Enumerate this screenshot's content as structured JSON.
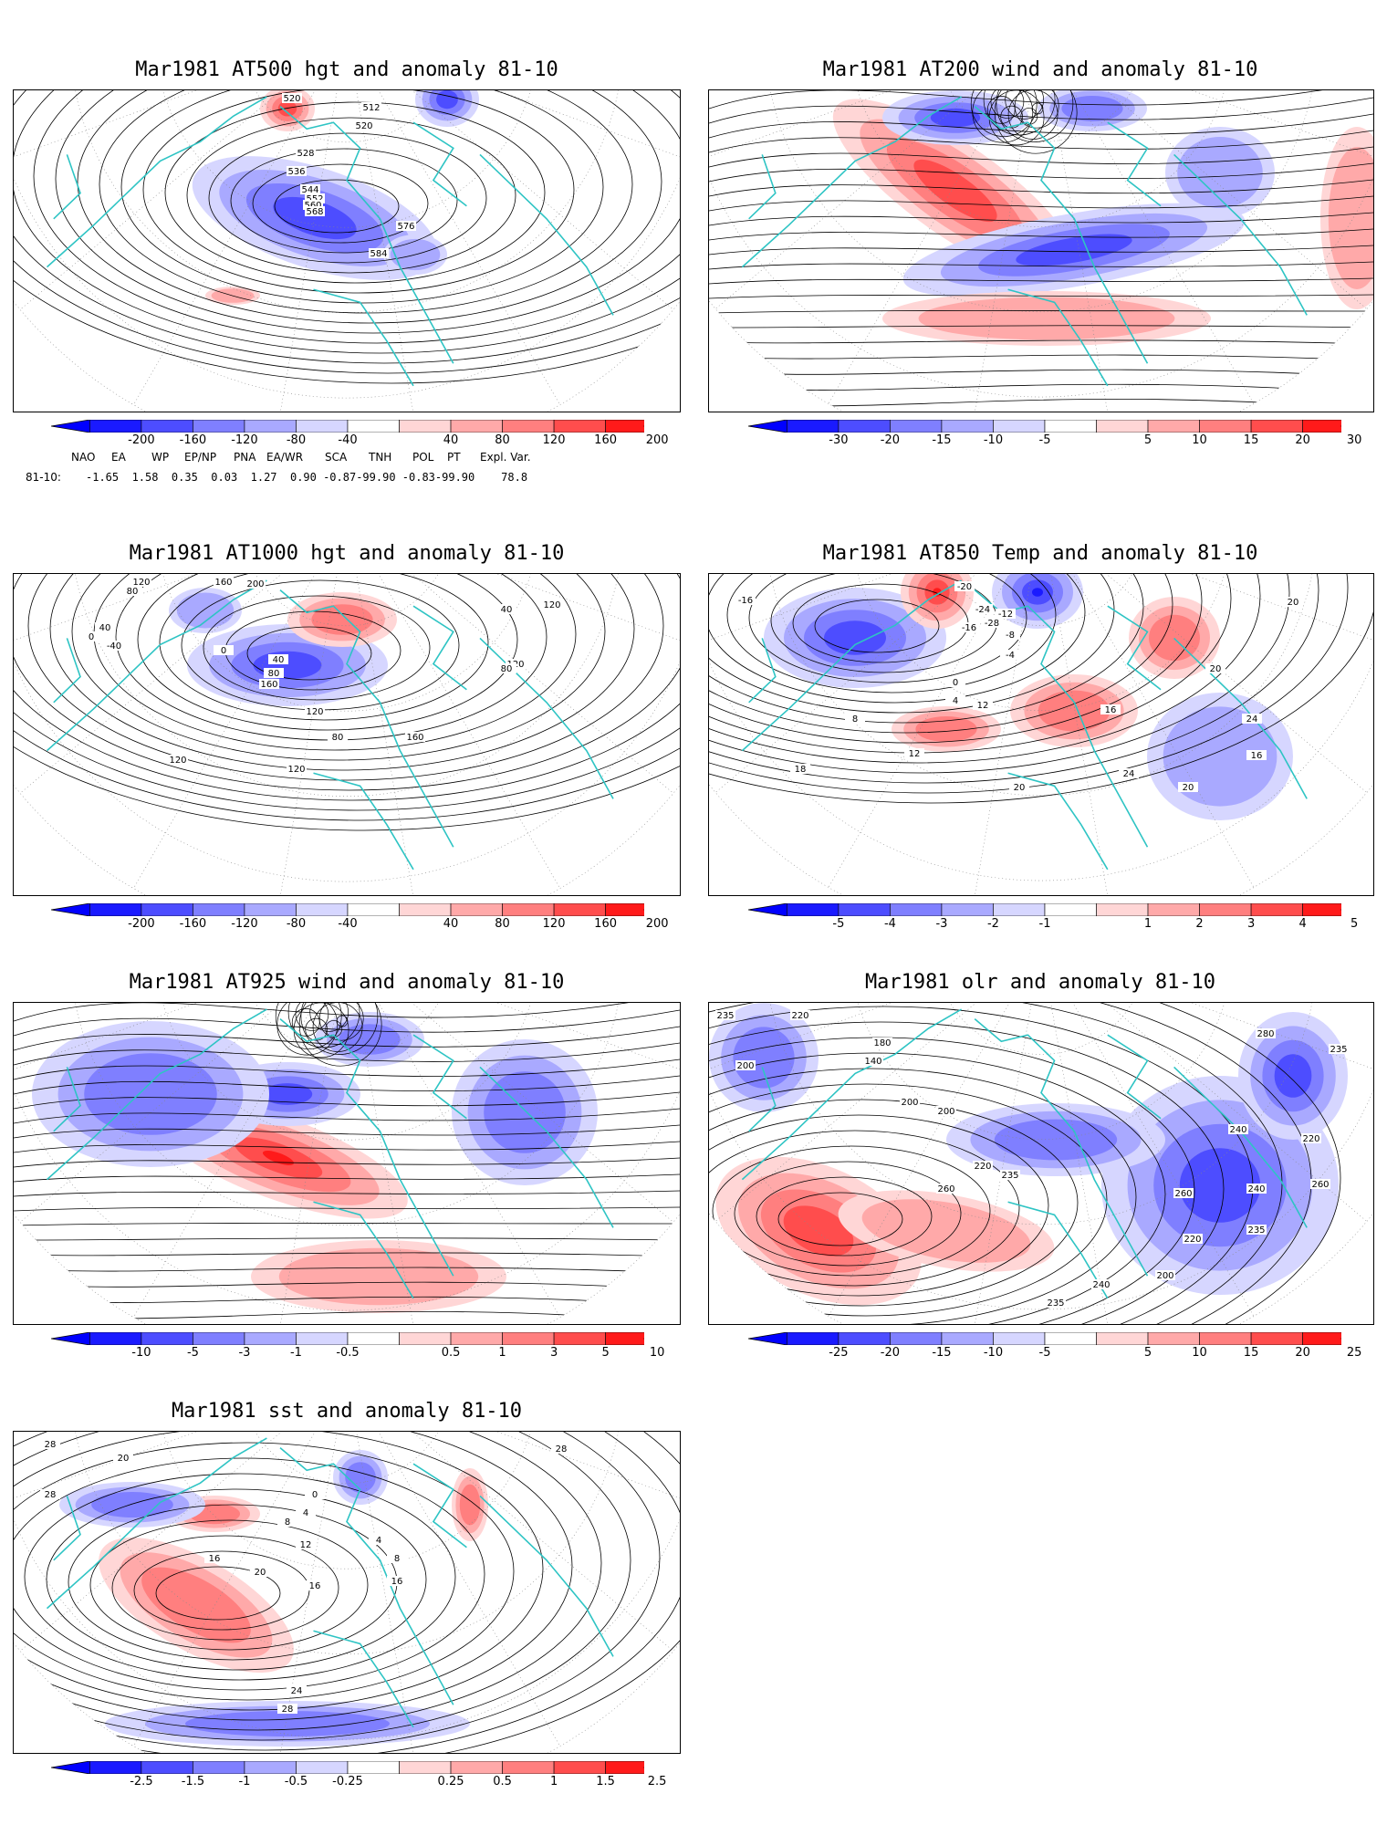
{
  "colors": {
    "blue_ramp": [
      "#1a1aff",
      "#4d4dff",
      "#7f7fff",
      "#a9a9ff",
      "#d6d6ff"
    ],
    "red_ramp": [
      "#ffd6d6",
      "#ffa9a9",
      "#ff7f7f",
      "#ff4d4d",
      "#ff1a1a"
    ],
    "coast": "#2ec4c4",
    "contour": "#000000"
  },
  "panels": [
    {
      "title": "Mar1981 AT500 hgt and anomaly 81-10",
      "ticks": [
        "-200",
        "-160",
        "-120",
        "-80",
        "-40",
        "40",
        "80",
        "120",
        "160",
        "200"
      ],
      "contour_labels": [
        "520",
        "512",
        "520",
        "528",
        "536",
        "544",
        "552",
        "560",
        "568",
        "576",
        "584"
      ]
    },
    {
      "title": "Mar1981 AT200 wind and anomaly 81-10",
      "ticks": [
        "-30",
        "-20",
        "-15",
        "-10",
        "-5",
        "5",
        "10",
        "15",
        "20",
        "30"
      ],
      "contour_labels": []
    },
    {
      "title": "Mar1981 AT1000 hgt and anomaly 81-10",
      "ticks": [
        "-200",
        "-160",
        "-120",
        "-80",
        "-40",
        "40",
        "80",
        "120",
        "160",
        "200"
      ],
      "contour_labels": [
        "120",
        "160",
        "200",
        "80",
        "40",
        "0",
        "-40",
        "0",
        "40",
        "80",
        "160",
        "120",
        "80",
        "120",
        "120",
        "40",
        "120",
        "160",
        "80",
        "120"
      ]
    },
    {
      "title": "Mar1981 AT850 Temp and anomaly 81-10",
      "ticks": [
        "-5",
        "-4",
        "-3",
        "-2",
        "-1",
        "1",
        "2",
        "3",
        "4",
        "5"
      ],
      "contour_labels": [
        "-16",
        "-20",
        "-24",
        "-28",
        "-16",
        "-12",
        "-8",
        "-4",
        "0",
        "4",
        "8",
        "12",
        "16",
        "12",
        "20",
        "24",
        "20",
        "24",
        "20",
        "16",
        "20",
        "18"
      ]
    },
    {
      "title": "Mar1981 AT925 wind and anomaly 81-10",
      "ticks": [
        "-10",
        "-5",
        "-3",
        "-1",
        "-0.5",
        "0.5",
        "1",
        "3",
        "5",
        "10"
      ],
      "contour_labels": []
    },
    {
      "title": "Mar1981 olr and anomaly 81-10",
      "ticks": [
        "-25",
        "-20",
        "-15",
        "-10",
        "-5",
        "5",
        "10",
        "15",
        "20",
        "25"
      ],
      "contour_labels": [
        "235",
        "220",
        "200",
        "180",
        "140",
        "200",
        "200",
        "220",
        "235",
        "260",
        "280",
        "235",
        "240",
        "220",
        "260",
        "240",
        "260",
        "235",
        "220",
        "200",
        "240",
        "235"
      ]
    },
    {
      "title": "Mar1981 sst and anomaly 81-10",
      "ticks": [
        "-2.5",
        "-1.5",
        "-1",
        "-0.5",
        "-0.25",
        "0.25",
        "0.5",
        "1",
        "1.5",
        "2.5"
      ],
      "contour_labels": [
        "28",
        "20",
        "28",
        "0",
        "4",
        "8",
        "12",
        "16",
        "20",
        "16",
        "24",
        "28",
        "28",
        "16",
        "8",
        "4"
      ]
    }
  ],
  "teleconnection": {
    "headers": [
      "NAO",
      "EA",
      "WP",
      "EP/NP",
      "PNA",
      "EA/WR",
      "SCA",
      "TNH",
      "POL",
      "PT",
      "Expl. Var."
    ],
    "row_label": "81-10:",
    "values": "-1.65  1.58  0.35  0.03  1.27  0.90 -0.87-99.90 -0.83-99.90    78.8"
  }
}
